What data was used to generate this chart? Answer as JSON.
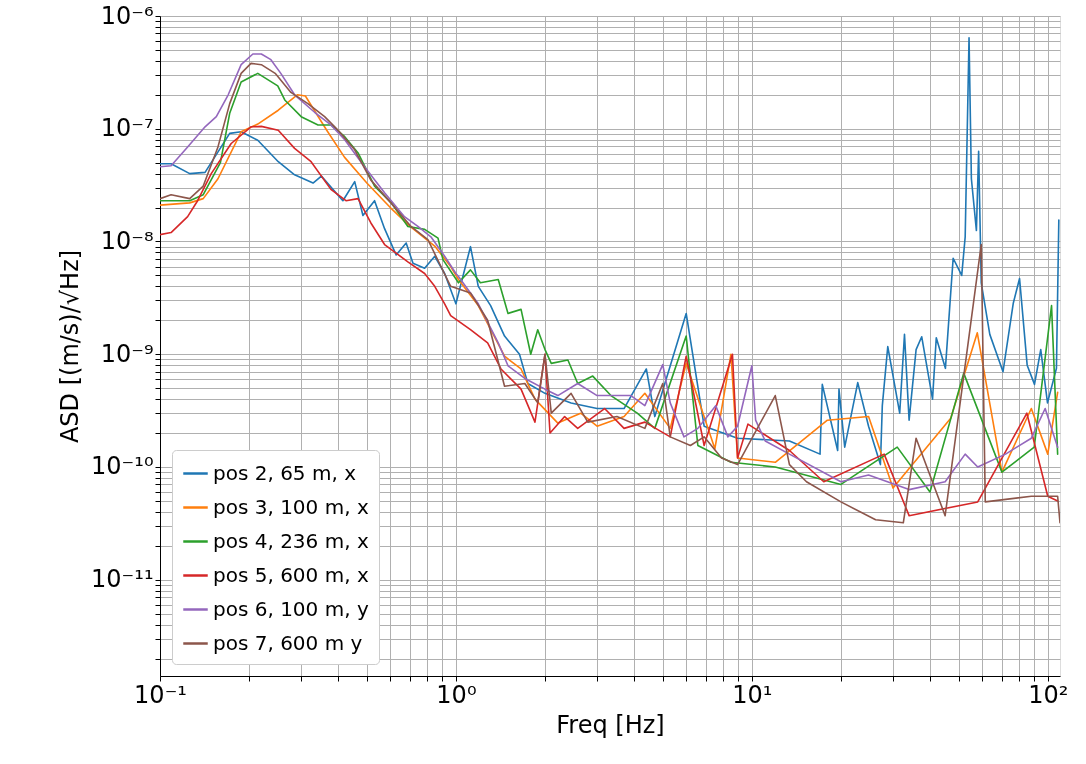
{
  "chart_data": {
    "type": "line",
    "xlabel": "Freq [Hz]",
    "ylabel": "ASD [(m/s)/√Hz]",
    "log": "xy",
    "grid": true,
    "legend": "bottom left",
    "xlim": [
      0.1,
      110
    ],
    "ylim": [
      1.4e-12,
      1e-06
    ],
    "xticks": [
      {
        "value": 0.1,
        "label": "10⁻¹"
      },
      {
        "value": 0.2,
        "label": null
      },
      {
        "value": 0.3,
        "label": null
      },
      {
        "value": 0.4,
        "label": null
      },
      {
        "value": 0.5,
        "label": null
      },
      {
        "value": 0.6,
        "label": null
      },
      {
        "value": 0.7,
        "label": null
      },
      {
        "value": 0.8,
        "label": null
      },
      {
        "value": 0.9,
        "label": null
      },
      {
        "value": 1,
        "label": "10⁰"
      },
      {
        "value": 2,
        "label": null
      },
      {
        "value": 3,
        "label": null
      },
      {
        "value": 4,
        "label": null
      },
      {
        "value": 5,
        "label": null
      },
      {
        "value": 6,
        "label": null
      },
      {
        "value": 7,
        "label": null
      },
      {
        "value": 8,
        "label": null
      },
      {
        "value": 9,
        "label": null
      },
      {
        "value": 10,
        "label": "10¹"
      },
      {
        "value": 20,
        "label": null
      },
      {
        "value": 30,
        "label": null
      },
      {
        "value": 40,
        "label": null
      },
      {
        "value": 50,
        "label": null
      },
      {
        "value": 60,
        "label": null
      },
      {
        "value": 70,
        "label": null
      },
      {
        "value": 80,
        "label": null
      },
      {
        "value": 90,
        "label": null
      },
      {
        "value": 100,
        "label": "10²"
      }
    ],
    "yticks": [
      {
        "value": 2e-12,
        "label": null
      },
      {
        "value": 3e-12,
        "label": null
      },
      {
        "value": 4e-12,
        "label": null
      },
      {
        "value": 5e-12,
        "label": null
      },
      {
        "value": 6e-12,
        "label": null
      },
      {
        "value": 7e-12,
        "label": null
      },
      {
        "value": 8e-12,
        "label": null
      },
      {
        "value": 9e-12,
        "label": null
      },
      {
        "value": 1e-11,
        "label": "10⁻¹¹"
      },
      {
        "value": 2e-11,
        "label": null
      },
      {
        "value": 3e-11,
        "label": null
      },
      {
        "value": 4e-11,
        "label": null
      },
      {
        "value": 5e-11,
        "label": null
      },
      {
        "value": 6e-11,
        "label": null
      },
      {
        "value": 7e-11,
        "label": null
      },
      {
        "value": 8e-11,
        "label": null
      },
      {
        "value": 9e-11,
        "label": null
      },
      {
        "value": 1e-10,
        "label": "10⁻¹⁰"
      },
      {
        "value": 2e-10,
        "label": null
      },
      {
        "value": 3e-10,
        "label": null
      },
      {
        "value": 4e-10,
        "label": null
      },
      {
        "value": 5e-10,
        "label": null
      },
      {
        "value": 6e-10,
        "label": null
      },
      {
        "value": 7e-10,
        "label": null
      },
      {
        "value": 8e-10,
        "label": null
      },
      {
        "value": 9e-10,
        "label": null
      },
      {
        "value": 1e-09,
        "label": "10⁻⁹"
      },
      {
        "value": 2e-09,
        "label": null
      },
      {
        "value": 3e-09,
        "label": null
      },
      {
        "value": 4e-09,
        "label": null
      },
      {
        "value": 5e-09,
        "label": null
      },
      {
        "value": 6e-09,
        "label": null
      },
      {
        "value": 7e-09,
        "label": null
      },
      {
        "value": 8e-09,
        "label": null
      },
      {
        "value": 9e-09,
        "label": null
      },
      {
        "value": 1e-08,
        "label": "10⁻⁸"
      },
      {
        "value": 2e-08,
        "label": null
      },
      {
        "value": 3e-08,
        "label": null
      },
      {
        "value": 4e-08,
        "label": null
      },
      {
        "value": 5e-08,
        "label": null
      },
      {
        "value": 6e-08,
        "label": null
      },
      {
        "value": 7e-08,
        "label": null
      },
      {
        "value": 8e-08,
        "label": null
      },
      {
        "value": 9e-08,
        "label": null
      },
      {
        "value": 1e-07,
        "label": "10⁻⁷"
      },
      {
        "value": 2e-07,
        "label": null
      },
      {
        "value": 3e-07,
        "label": null
      },
      {
        "value": 4e-07,
        "label": null
      },
      {
        "value": 5e-07,
        "label": null
      },
      {
        "value": 6e-07,
        "label": null
      },
      {
        "value": 7e-07,
        "label": null
      },
      {
        "value": 8e-07,
        "label": null
      },
      {
        "value": 9e-07,
        "label": null
      },
      {
        "value": 1e-06,
        "label": "10⁻⁶"
      }
    ],
    "series": [
      {
        "name": "pos 2, 65 m, x",
        "color": "#1f77b4",
        "x": [
          0.1,
          0.109,
          0.126,
          0.142,
          0.172,
          0.188,
          0.214,
          0.251,
          0.285,
          0.329,
          0.351,
          0.415,
          0.455,
          0.485,
          0.531,
          0.574,
          0.628,
          0.679,
          0.716,
          0.784,
          0.848,
          0.916,
          1.0,
          1.12,
          1.19,
          1.31,
          1.46,
          1.64,
          1.75,
          2.0,
          2.45,
          3.0,
          3.7,
          4.4,
          4.7,
          6.0,
          6.9,
          8.95,
          13.4,
          17.0,
          17.3,
          19.5,
          19.7,
          20.6,
          22.8,
          24.8,
          27.2,
          27.6,
          28.8,
          31.6,
          32.8,
          34.0,
          35.9,
          37.5,
          40.8,
          42.0,
          45.1,
          47.9,
          51.2,
          52.6,
          54.2,
          55.2,
          57.4,
          58.4,
          59.6,
          63.7,
          70.6,
          76.5,
          80.3,
          85.2,
          90.2,
          94.7,
          99.8,
          107,
          109
        ],
        "values": [
          4.9e-08,
          4.9e-08,
          4e-08,
          4.1e-08,
          9.1e-08,
          9.4e-08,
          7.9e-08,
          5.1e-08,
          3.9e-08,
          3.3e-08,
          3.8e-08,
          2.3e-08,
          3.4e-08,
          1.7e-08,
          2.3e-08,
          1.3e-08,
          7.6e-09,
          9.7e-09,
          6.4e-09,
          5.8e-09,
          7.4e-09,
          5.2e-09,
          2.8e-09,
          9e-09,
          4e-09,
          2.7e-09,
          1.45e-09,
          1e-09,
          5.5e-10,
          4.5e-10,
          3.7e-10,
          3.3e-10,
          3.3e-10,
          7.4e-10,
          2.8e-10,
          2.3e-09,
          2.3e-10,
          1.8e-10,
          1.7e-10,
          1.3e-10,
          5.4e-10,
          1.4e-10,
          4.9e-10,
          1.5e-10,
          5.6e-10,
          2.3e-10,
          1.05e-10,
          3.5e-10,
          1.17e-09,
          3e-10,
          1.5e-09,
          2.6e-10,
          1.1e-09,
          1.43e-09,
          4e-10,
          1.4e-09,
          7.5e-10,
          7.1e-09,
          5e-09,
          1.1e-08,
          6.4e-07,
          3.6e-08,
          1.25e-08,
          6.3e-08,
          4.3e-09,
          1.5e-09,
          7e-10,
          2.85e-09,
          4.7e-09,
          8e-10,
          5.4e-10,
          1.1e-09,
          3.7e-10,
          7.5e-10,
          1.55e-08
        ]
      },
      {
        "name": "pos 3, 100 m, x",
        "color": "#ff7f0e",
        "x": [
          0.1,
          0.126,
          0.14,
          0.157,
          0.188,
          0.214,
          0.251,
          0.291,
          0.31,
          0.365,
          0.42,
          0.5,
          0.6,
          0.7,
          0.848,
          0.96,
          1.02,
          1.19,
          1.46,
          1.66,
          1.85,
          2.21,
          2.64,
          3.0,
          3.7,
          4.35,
          5.3,
          6.0,
          7.5,
          8.5,
          8.95,
          12,
          18,
          24.8,
          30,
          47,
          57.8,
          70,
          88,
          100,
          108
        ],
        "values": [
          2.1e-08,
          2.2e-08,
          2.4e-08,
          3.6e-08,
          9.4e-08,
          1.1e-07,
          1.46e-07,
          2e-07,
          1.95e-07,
          9.8e-08,
          5.6e-08,
          3.3e-08,
          2e-08,
          1.36e-08,
          9.1e-09,
          6e-09,
          4.6e-09,
          2.7e-09,
          9.6e-10,
          7.4e-10,
          4e-10,
          2.45e-10,
          3e-10,
          2.3e-10,
          2.8e-10,
          4.5e-10,
          2.2e-10,
          8.3e-10,
          1.45e-10,
          1e-09,
          1.2e-10,
          1.1e-10,
          2.6e-10,
          2.8e-10,
          6.5e-11,
          2.7e-10,
          1.55e-09,
          9e-11,
          3.3e-10,
          1.3e-10,
          4.6e-10
        ]
      },
      {
        "name": "pos 4, 236 m, x",
        "color": "#2ca02c",
        "x": [
          0.1,
          0.126,
          0.14,
          0.16,
          0.172,
          0.188,
          0.214,
          0.25,
          0.264,
          0.3,
          0.342,
          0.378,
          0.421,
          0.467,
          0.531,
          0.605,
          0.688,
          0.784,
          0.87,
          0.904,
          1.02,
          1.12,
          1.21,
          1.39,
          1.5,
          1.66,
          1.79,
          1.89,
          2.0,
          2.1,
          2.39,
          2.58,
          2.9,
          3.34,
          4.1,
          4.7,
          6.0,
          6.57,
          8.5,
          12,
          20,
          31,
          40,
          52,
          70,
          90,
          103,
          108
        ],
        "values": [
          2.3e-08,
          2.3e-08,
          2.6e-08,
          5e-08,
          1.37e-07,
          2.6e-07,
          3.1e-07,
          2.4e-07,
          1.8e-07,
          1.28e-07,
          1.08e-07,
          1.08e-07,
          8.5e-08,
          6.1e-08,
          3.1e-08,
          2.2e-08,
          1.36e-08,
          1.28e-08,
          1.07e-08,
          6.9e-09,
          4.3e-09,
          5.6e-09,
          4.3e-09,
          4.6e-09,
          2.3e-09,
          2.5e-09,
          1e-09,
          1.65e-09,
          1.1e-09,
          8.3e-10,
          8.9e-10,
          5.5e-10,
          6.4e-10,
          4.3e-10,
          3e-10,
          2.2e-10,
          1.45e-09,
          1.55e-10,
          1.1e-10,
          1e-10,
          7e-11,
          1.5e-10,
          6e-11,
          6.8e-10,
          9e-11,
          1.5e-10,
          2.7e-09,
          1.3e-10
        ]
      },
      {
        "name": "pos 5, 600 m, x",
        "color": "#d62728",
        "x": [
          0.1,
          0.109,
          0.124,
          0.134,
          0.149,
          0.174,
          0.203,
          0.22,
          0.251,
          0.285,
          0.324,
          0.378,
          0.425,
          0.467,
          0.516,
          0.574,
          0.688,
          0.784,
          0.848,
          0.916,
          0.96,
          1.12,
          1.28,
          1.42,
          1.66,
          1.85,
          2.0,
          2.08,
          2.33,
          2.58,
          3.18,
          3.7,
          4.35,
          5.3,
          6.0,
          6.9,
          8.6,
          8.95,
          9.7,
          13.4,
          17.5,
          28,
          34,
          58,
          85,
          100,
          108
        ],
        "values": [
          1.15e-08,
          1.2e-08,
          1.66e-08,
          2.3e-08,
          4e-08,
          7.4e-08,
          1.04e-07,
          1.05e-07,
          9.7e-08,
          6.7e-08,
          5.1e-08,
          2.9e-08,
          2.3e-08,
          2.4e-08,
          1.46e-08,
          9.4e-09,
          6.6e-09,
          5.2e-09,
          4e-09,
          2.8e-09,
          2.2e-09,
          1.65e-09,
          1.26e-09,
          7.4e-10,
          4.9e-10,
          2.5e-10,
          1e-09,
          2e-10,
          2.8e-10,
          2.2e-10,
          3.3e-10,
          2.2e-10,
          2.5e-10,
          1.85e-10,
          9.6e-10,
          1.55e-10,
          1e-09,
          1.2e-10,
          2.4e-10,
          1.4e-10,
          7.4e-11,
          1.3e-10,
          3.7e-11,
          4.9e-11,
          3e-10,
          5.5e-11,
          5e-11
        ]
      },
      {
        "name": "pos 6, 100 m, y",
        "color": "#9467bd",
        "x": [
          0.1,
          0.109,
          0.124,
          0.142,
          0.155,
          0.17,
          0.188,
          0.206,
          0.22,
          0.237,
          0.256,
          0.285,
          0.333,
          0.378,
          0.421,
          0.491,
          0.574,
          0.67,
          0.744,
          0.823,
          0.916,
          1.0,
          1.02,
          1.19,
          1.39,
          1.5,
          1.71,
          2.0,
          2.21,
          2.58,
          3.0,
          3.5,
          3.9,
          4.35,
          5.0,
          5.3,
          5.9,
          6.57,
          7.55,
          8.3,
          8.95,
          10,
          10.3,
          11.1,
          13.4,
          20,
          24.8,
          34,
          45,
          52.6,
          58,
          72,
          88,
          98,
          108
        ],
        "values": [
          4.6e-08,
          4.7e-08,
          6.9e-08,
          1.04e-07,
          1.28e-07,
          2e-07,
          3.7e-07,
          4.6e-07,
          4.6e-07,
          4.1e-07,
          3.1e-07,
          2e-07,
          1.4e-07,
          1.08e-07,
          8e-08,
          4.6e-08,
          2.7e-08,
          1.66e-08,
          1.36e-08,
          1.1e-08,
          7.4e-09,
          5.2e-09,
          4.9e-09,
          2.8e-09,
          1.26e-09,
          7.9e-10,
          6.1e-10,
          4.9e-10,
          4.3e-10,
          5.5e-10,
          4.3e-10,
          4.3e-10,
          4.3e-10,
          3.5e-10,
          8.1e-10,
          3.7e-10,
          1.85e-10,
          2.2e-10,
          3.5e-10,
          1.85e-10,
          2.3e-10,
          7.9e-10,
          2.6e-10,
          1.7e-10,
          1.3e-10,
          7.4e-11,
          8.5e-11,
          6.3e-11,
          7.4e-11,
          1.3e-10,
          1e-10,
          1.3e-10,
          1.8e-10,
          3.3e-10,
          1.5e-10
        ]
      },
      {
        "name": "pos 7, 600 m y",
        "color": "#8c564b",
        "x": [
          0.1,
          0.109,
          0.126,
          0.14,
          0.157,
          0.172,
          0.188,
          0.203,
          0.22,
          0.245,
          0.277,
          0.316,
          0.36,
          0.4,
          0.455,
          0.516,
          0.603,
          0.705,
          0.804,
          0.89,
          0.96,
          1.12,
          1.28,
          1.46,
          1.71,
          1.89,
          2.0,
          2.1,
          2.45,
          2.79,
          3.5,
          4.35,
          5.0,
          5.3,
          6.2,
          6.9,
          7.9,
          8.95,
          12,
          13.4,
          15.3,
          20,
          26.2,
          32.5,
          35.9,
          45,
          59.6,
          61.5,
          88,
          108,
          110
        ],
        "values": [
          2.4e-08,
          2.6e-08,
          2.4e-08,
          3.1e-08,
          6.9e-08,
          1.67e-07,
          3.1e-07,
          3.8e-07,
          3.7e-07,
          3.1e-07,
          2.1e-07,
          1.67e-07,
          1.28e-07,
          9.7e-08,
          6.5e-08,
          3.5e-08,
          2.2e-08,
          1.36e-08,
          1.04e-08,
          6e-09,
          4e-09,
          3.5e-09,
          2e-09,
          5.2e-10,
          5.5e-10,
          3.7e-10,
          1e-09,
          3e-10,
          4.5e-10,
          2.5e-10,
          2.8e-10,
          2.2e-10,
          5.5e-10,
          1.85e-10,
          1.55e-10,
          1.85e-10,
          1.2e-10,
          1.05e-10,
          4.3e-10,
          1.05e-10,
          7.4e-11,
          4.9e-11,
          3.4e-11,
          3.2e-11,
          1.8e-10,
          3.7e-11,
          9.4e-09,
          4.9e-11,
          5.5e-11,
          5.5e-11,
          3.2e-11
        ]
      }
    ]
  }
}
